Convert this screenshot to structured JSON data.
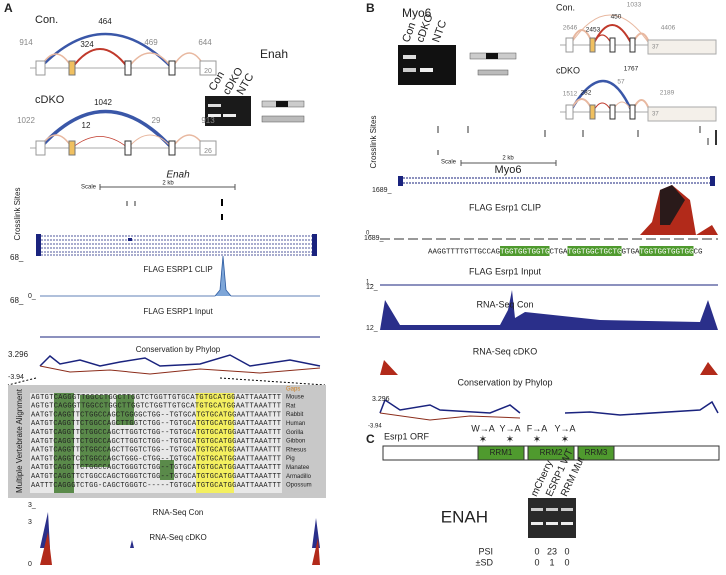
{
  "panel_a": {
    "label": "A",
    "con": {
      "title": "Con.",
      "junctions": [
        464,
        324,
        914,
        469,
        644
      ],
      "exon_label": 20
    },
    "cdko": {
      "title": "cDKO",
      "junctions": [
        1042,
        12,
        1022,
        29,
        913
      ],
      "exon_label": 26
    },
    "gel": {
      "title": "Enah",
      "lanes": [
        "Con",
        "cDKO",
        "NTC"
      ]
    },
    "browser": {
      "gene": "Enah",
      "scale": "Scale",
      "scale_size": "2 kb",
      "crosslink": "Crosslink Sites",
      "clip": {
        "name": "FLAG ESRP1 CLIP",
        "max": "68_",
        "min": "0_"
      },
      "input": {
        "name": "FLAG ESRP1 Input",
        "max": "68_"
      },
      "phylop": {
        "name": "Conservation by Phylop",
        "max": 3.296,
        "min": -3.94
      },
      "rnaseq_con": {
        "name": "RNA-Seq Con",
        "max": "3_",
        "min": "3"
      },
      "rnaseq_cdko": {
        "name": "RNA-Seq cDKO",
        "min": "0"
      }
    },
    "alignment": {
      "title": "Multiple Vertebrate Alignment",
      "gaps_label": "Gaps",
      "species": [
        "Mouse",
        "Rat",
        "Rabbit",
        "Human",
        "Gorilla",
        "Gibbon",
        "Rhesus",
        "Pig",
        "Manatee",
        "Armadillo",
        "Opossum"
      ],
      "sequences": [
        "AGTGTCAGGGTTGGCCTGGCTTGGTCTGGTTGTGCATGTGCATGGAATTAAATTT",
        "AGTGTCAGGGTTGGCCTGGCTTGGTCTGGTTGTGCATGTGCATGGAATTAAATTT",
        "AATGTCAGGTTCTGGCCAGCTGGGGCTGG--TGTGCATGTGCATGGAATTAAATTT",
        "AATGTCAGGTTCTGGCCAGCTTGGTCTGG--TGTGCATGTGCATGGAATTAAATTT",
        "AATGTCAGGTTCTGGCCAGCTTGGTCTGG--TGTGCATGTGCATGGAATTAAATTT",
        "AATGTCAGGTTCTGGCCAGCTTGGTCTGG--TGTGCATGTGCATGGAATTAAATTT",
        "AATGTCAGGTTCTGGCCAGCTTGGTCTGG--TGTGCATGTGCATGGAATTAAATTT",
        "AATGTCAGGTCCTGGCCAGCTGGG-CTGG--TGTGCATGTGCATGGAATTAAATTT",
        "AATGTCAGGTTCTGGCCAGCTGGGTCTGG--TGTGCATGTGCATGGAATTAAATTT",
        "AATGTCAGGTTCTGGCCAGCTGGGTCTGG--TGTGCATGTGCATGGAATTAAATTT",
        "AATTTCAGGGTCTGG-CAGCTGGGTC-----TGTGCATGTGCATGGAATTAAATTT"
      ]
    }
  },
  "panel_b": {
    "label": "B",
    "gel": {
      "title": "Myo6",
      "lanes": [
        "Con",
        "cDKO",
        "NTC"
      ]
    },
    "con": {
      "title": "Con.",
      "junctions": [
        1033,
        2646,
        2453,
        450,
        4406
      ],
      "exon_label": 37
    },
    "cdko": {
      "title": "cDKO",
      "junctions": [
        1767,
        1512,
        282,
        57,
        2189
      ],
      "exon_label": 37
    },
    "browser": {
      "gene": "Myo6",
      "scale": "Scale",
      "scale_size": "2 kb",
      "crosslink": "Crosslink Sites",
      "clip": {
        "name": "FLAG Esrp1 CLIP",
        "max": "1689_",
        "min": "0_"
      },
      "sequence": [
        "AAGGTTTTGTTGCCAG",
        "TGGTGGTGGTG",
        "CTGA",
        "TGGTGGCTGCTG",
        "GTGA",
        "TGGTGGTGGTGG",
        "CG"
      ],
      "input": {
        "name": "FLAG Esrp1 Input",
        "max": "1689_",
        "min": "1_"
      },
      "rnaseq_con": {
        "name": "RNA-Seq Con",
        "max": "12_"
      },
      "rnaseq_cdko": {
        "name": "RNA-Seq cDKO",
        "max": "12_"
      },
      "phylop": {
        "name": "Conservation by Phylop",
        "max": 3.296,
        "min": -3.94
      }
    }
  },
  "panel_c": {
    "label": "C",
    "orf": "Esrp1 ORF",
    "mutations": [
      "W→A",
      "Y→A",
      "F→A",
      "Y→A"
    ],
    "domains": [
      "RRM1",
      "RRM2",
      "RRM3"
    ],
    "gel": {
      "title": "ENAH",
      "lanes": [
        "mCherry",
        "ESRP1 WT",
        "RRM Mut"
      ]
    },
    "psi_label": "PSI",
    "psi": [
      0,
      23,
      0
    ],
    "sd_label": "±SD",
    "sd": [
      0,
      1,
      0
    ]
  }
}
